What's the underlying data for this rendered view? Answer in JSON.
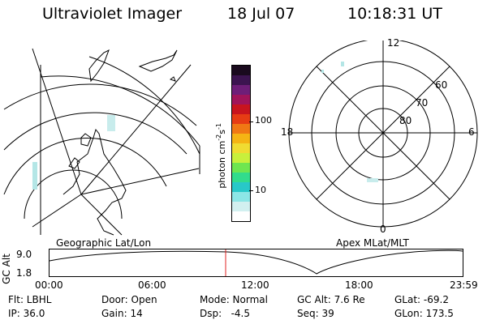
{
  "header": {
    "title": "Ultraviolet Imager",
    "date": "18 Jul 07",
    "time": "10:18:31 UT"
  },
  "colorbar": {
    "label": "photon cm",
    "label_sup1": "-2",
    "label_mid": "s",
    "label_sup2": "-1",
    "tick_100": "100",
    "tick_10": "10",
    "colors": [
      "#1a0a1e",
      "#3c1450",
      "#6e1e78",
      "#a0145a",
      "#c8141e",
      "#e63c14",
      "#f07814",
      "#f5b414",
      "#f0dc32",
      "#c8f03c",
      "#6ee650",
      "#32dc8c",
      "#28c8c8",
      "#8ce6e6",
      "#d2f0f0",
      "#ffffff"
    ]
  },
  "left_map": {
    "caption": "Geographic Lat/Lon"
  },
  "right_map": {
    "caption": "Apex MLat/MLT",
    "lt_12": "12",
    "lt_18": "18",
    "lt_6": "6",
    "lt_0": "0",
    "lat_60": "60",
    "lat_70": "70",
    "lat_80": "80"
  },
  "alt_plot": {
    "ylabel": "GC Alt",
    "y_top": "9.0",
    "y_bot": "1.8",
    "marker_color": "#e02020",
    "x_ticks": [
      "00:00",
      "06:00",
      "12:00",
      "18:00",
      "23:59"
    ]
  },
  "footer": {
    "flt": "Flt: LBHL",
    "ip": "IP: 36.0",
    "door": "Door: Open",
    "gain": "Gain: 14",
    "mode": "Mode: Normal",
    "dsp": "Dsp:   -4.5",
    "gc_alt": "GC Alt: 7.6 Re",
    "seq": "Seq: 39",
    "glat": "GLat: -69.2",
    "glon": "GLon: 173.5"
  }
}
